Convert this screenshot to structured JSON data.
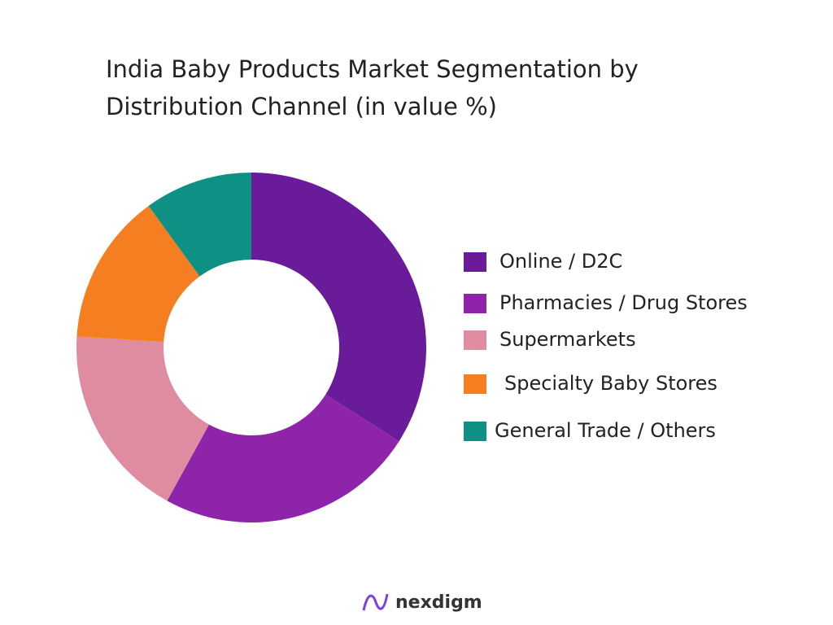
{
  "chart_data": {
    "type": "donut",
    "title": "India Baby Products Market Segmentation by Distribution Channel (in value %)",
    "categories": [
      "Online / D2C",
      "Pharmacies / Drug Stores",
      "Supermarkets",
      "Specialty Baby Stores",
      "General Trade / Others"
    ],
    "values": [
      34,
      24,
      18,
      14,
      10
    ],
    "colors": [
      "#6a1b9a",
      "#8e24aa",
      "#e08ca0",
      "#f57f20",
      "#0f9085"
    ],
    "legend": "right"
  },
  "brand": "nexdigm"
}
